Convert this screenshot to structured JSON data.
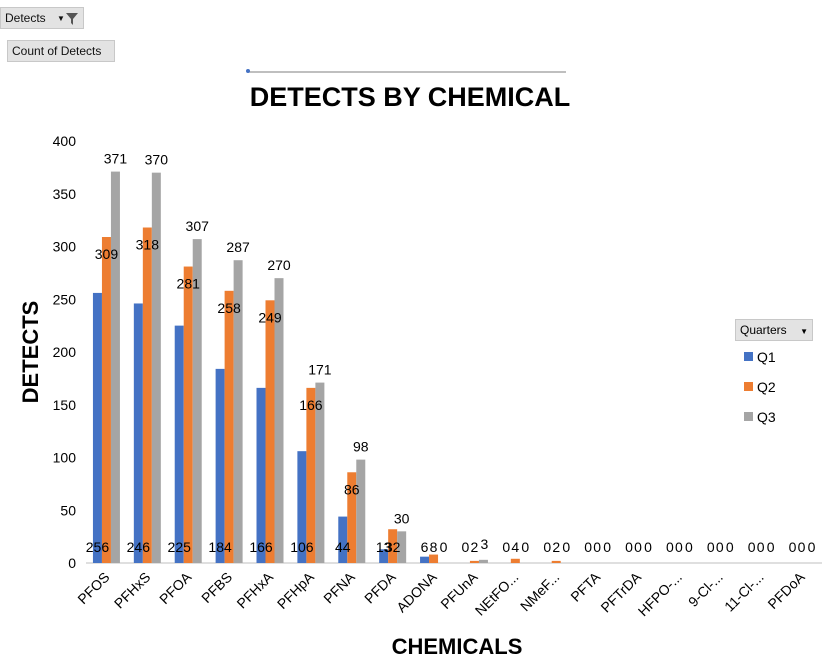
{
  "pivot": {
    "filter_label": "Detects",
    "value_label": "Count  of Detects",
    "legend_label": "Quarters"
  },
  "colors": {
    "Q1": "#4472c4",
    "Q2": "#ed7d31",
    "Q3": "#a5a5a5"
  },
  "chart_data": {
    "type": "bar",
    "title": "DETECTS BY CHEMICAL",
    "xlabel": "CHEMICALS",
    "ylabel": "DETECTS",
    "ylim": [
      0,
      400
    ],
    "yticks": [
      0,
      50,
      100,
      150,
      200,
      250,
      300,
      350,
      400
    ],
    "categories": [
      "PFOS",
      "PFHxS",
      "PFOA",
      "PFBS",
      "PFHxA",
      "PFHpA",
      "PFNA",
      "PFDA",
      "ADONA",
      "PFUnA",
      "NEtFO...",
      "NMeF...",
      "PFTA",
      "PFTrDA",
      "HFPO-...",
      "9-Cl-...",
      "11-Cl-...",
      "PFDoA"
    ],
    "series": [
      {
        "name": "Q1",
        "values": [
          256,
          246,
          225,
          184,
          166,
          106,
          44,
          13,
          6,
          0,
          0,
          0,
          0,
          0,
          0,
          0,
          0,
          0
        ]
      },
      {
        "name": "Q2",
        "values": [
          309,
          318,
          281,
          258,
          249,
          166,
          86,
          32,
          8,
          2,
          4,
          2,
          0,
          0,
          0,
          0,
          0,
          0
        ]
      },
      {
        "name": "Q3",
        "values": [
          371,
          370,
          307,
          287,
          270,
          171,
          98,
          30,
          0,
          3,
          0,
          0,
          0,
          0,
          0,
          0,
          0,
          0
        ]
      }
    ],
    "legend": "right"
  }
}
